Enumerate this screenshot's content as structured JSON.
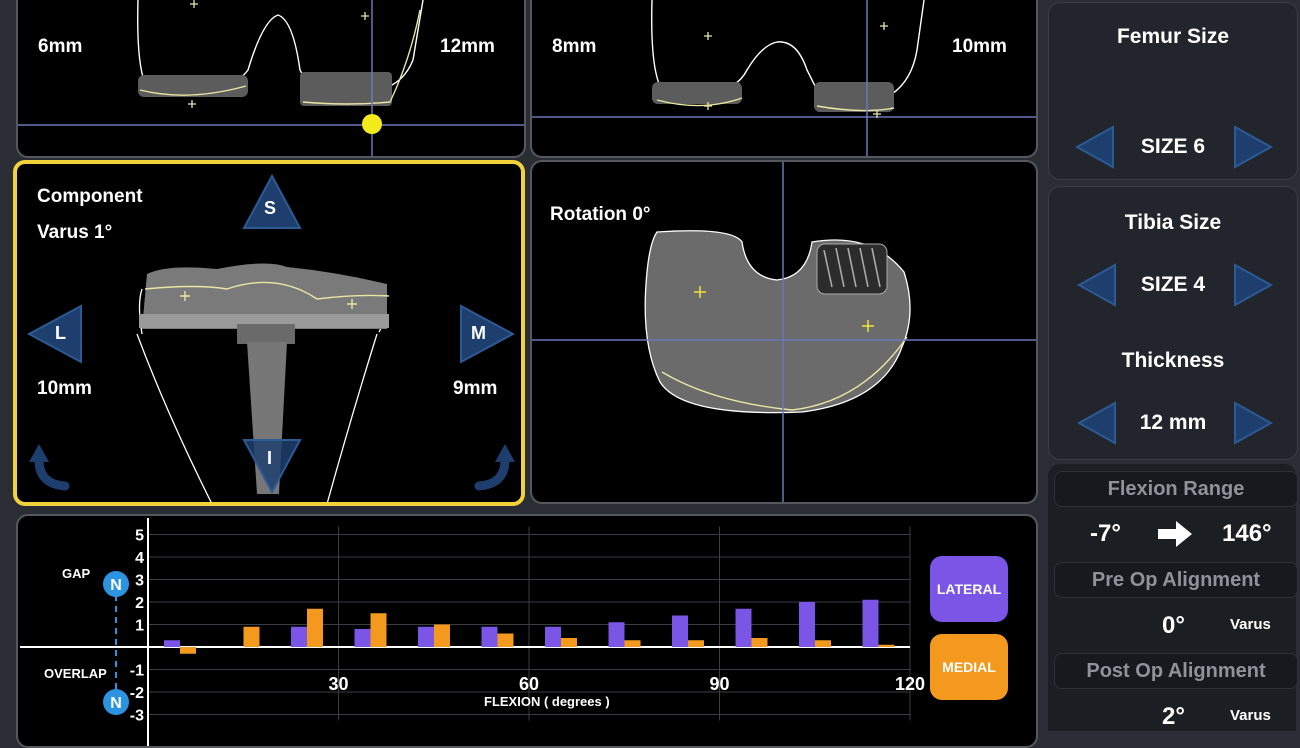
{
  "top_left": {
    "left_gap": "6mm",
    "right_gap": "12mm"
  },
  "top_right": {
    "left_gap": "8mm",
    "right_gap": "10mm"
  },
  "component": {
    "title": "Component",
    "varus": "Varus 1°",
    "left_gap": "10mm",
    "right_gap": "9mm",
    "btn_superior": "S",
    "btn_inferior": "I",
    "btn_lateral": "L",
    "btn_medial": "M"
  },
  "rotation": {
    "label": "Rotation 0°"
  },
  "femur": {
    "title": "Femur Size",
    "value": "SIZE 6"
  },
  "tibia": {
    "title": "Tibia Size",
    "value": "SIZE 4"
  },
  "thickness": {
    "title": "Thickness",
    "value": "12 mm"
  },
  "flexion": {
    "title": "Flexion Range",
    "min": "-7°",
    "max": "146°"
  },
  "pre_op": {
    "title": "Pre Op Alignment",
    "value": "0°",
    "unit": "Varus"
  },
  "post_op": {
    "title": "Post Op Alignment",
    "value": "2°",
    "unit": "Varus"
  },
  "colors": {
    "accent_yellow": "#f2d23a",
    "lateral": "#7a55e6",
    "medial": "#f39a1e",
    "arrow": "#1e3f6e",
    "marker": "#2b93e0"
  },
  "chart_data": {
    "type": "bar",
    "xlabel": "FLEXION ( degrees )",
    "gap_label": "GAP",
    "overlap_label": "OVERLAP",
    "marker_label": "N",
    "x_ticks": [
      30,
      60,
      90,
      120
    ],
    "y_ticks": [
      5,
      4,
      3,
      2,
      1,
      -1,
      -2,
      -3
    ],
    "xlim": [
      0,
      120
    ],
    "ylim": [
      -3,
      5
    ],
    "categories": [
      0,
      10,
      20,
      30,
      40,
      50,
      60,
      70,
      80,
      90,
      100,
      110
    ],
    "series": [
      {
        "name": "LATERAL",
        "values": [
          0.3,
          0,
          0.9,
          0.8,
          0.9,
          0.9,
          0.9,
          1.1,
          1.4,
          1.7,
          2.0,
          2.1
        ]
      },
      {
        "name": "MEDIAL",
        "values": [
          -0.3,
          0.9,
          1.7,
          1.5,
          1.0,
          0.6,
          0.4,
          0.3,
          0.3,
          0.4,
          0.3,
          0.1
        ]
      }
    ]
  }
}
